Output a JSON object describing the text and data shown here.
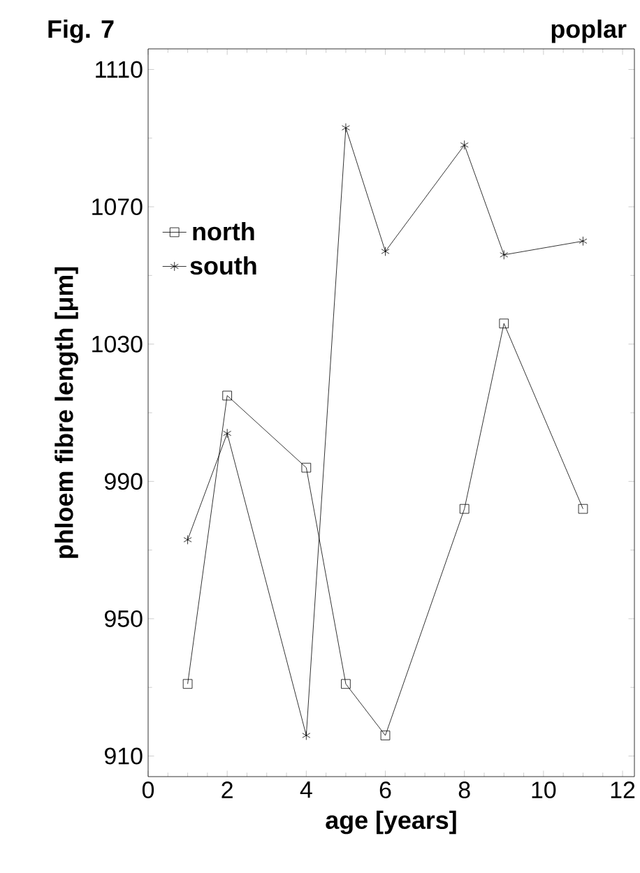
{
  "chart_data": {
    "type": "line",
    "title": "Fig. 7",
    "subtitle": "poplar",
    "xlabel": "age [years]",
    "ylabel": "phloem fibre length [μm]",
    "xlim": [
      0,
      12.3
    ],
    "ylim": [
      904,
      1116
    ],
    "xticks": [
      0,
      2,
      4,
      6,
      8,
      10,
      12
    ],
    "yticks": [
      910,
      950,
      990,
      1030,
      1070,
      1110
    ],
    "legend": "top left",
    "line_style": "solid",
    "series": [
      {
        "name": "north",
        "color": "#000000",
        "marker": "square",
        "x": [
          1,
          2,
          4,
          5,
          6,
          8,
          9,
          11
        ],
        "values": [
          931,
          1015,
          994,
          931,
          916,
          982,
          1036,
          982
        ]
      },
      {
        "name": "south",
        "color": "#000000",
        "marker": "cross",
        "x": [
          1,
          2,
          4,
          5,
          6,
          8,
          9,
          11
        ],
        "values": [
          973,
          1004,
          916,
          1093,
          1057,
          1088,
          1056,
          1060
        ]
      }
    ]
  }
}
